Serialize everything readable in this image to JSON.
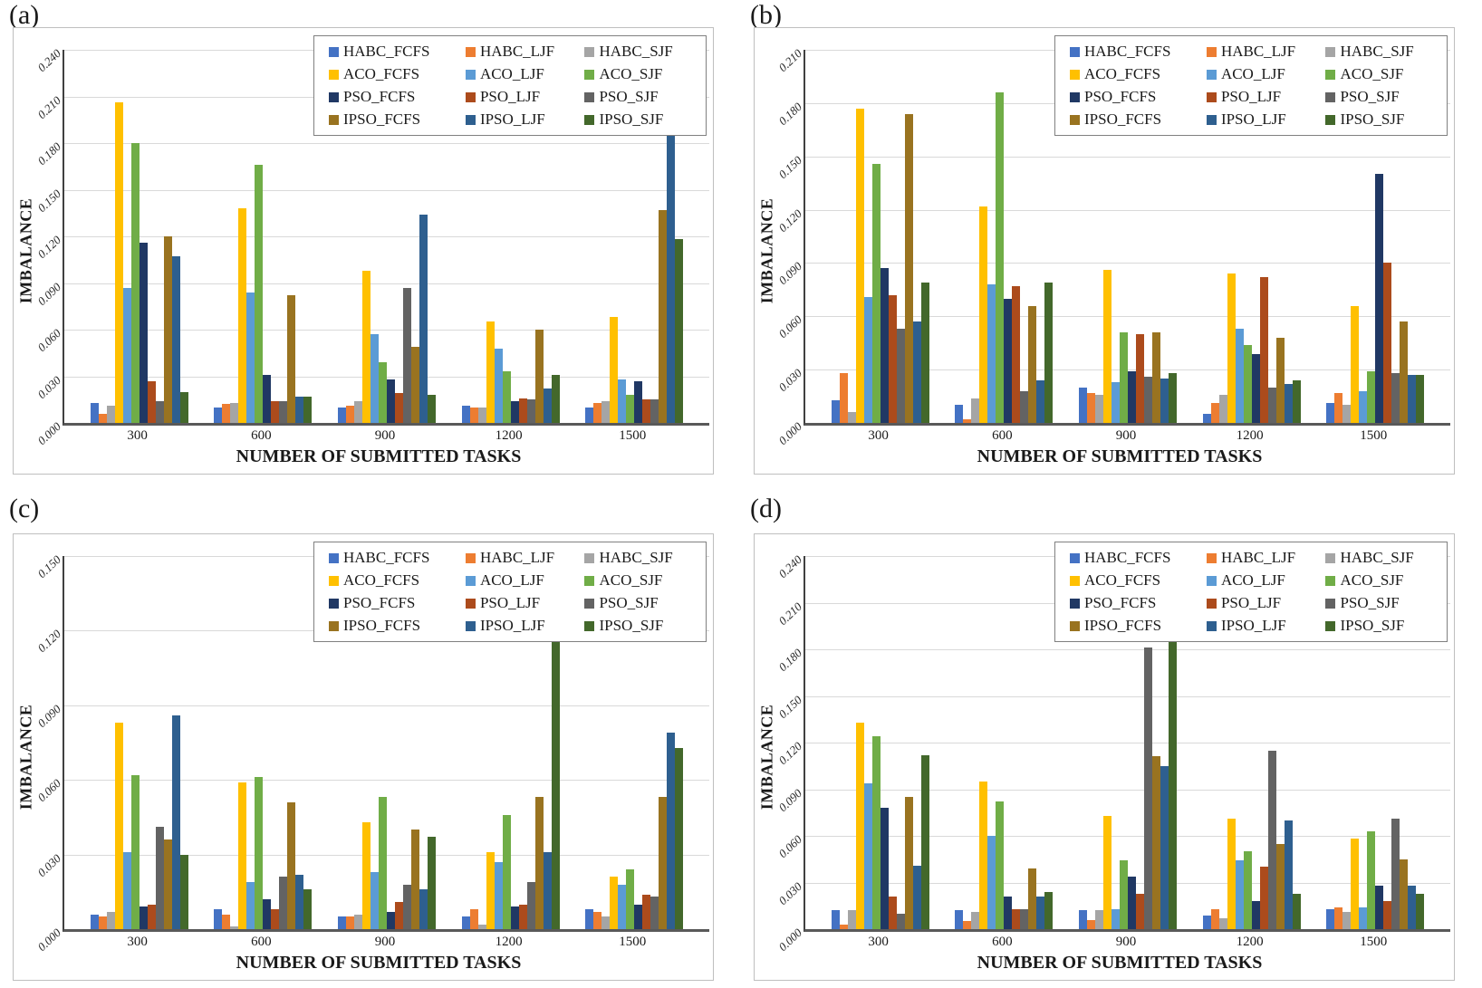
{
  "figure": {
    "series_colors": {
      "HABC_FCFS": "#4472C4",
      "HABC_LJF": "#ED7D31",
      "HABC_SJF": "#A5A5A5",
      "ACO_FCFS": "#FFC000",
      "ACO_LJF": "#5B9BD5",
      "ACO_SJF": "#70AD47",
      "PSO_FCFS": "#203864",
      "PSO_LJF": "#AC4B1C",
      "PSO_SJF": "#636363",
      "IPSO_FCFS": "#997320",
      "IPSO_LJF": "#2E5F8F",
      "IPSO_SJF": "#43682B"
    },
    "gridline_color": "#D9D9D9",
    "legend_position": "top-right"
  },
  "chart_data": [
    {
      "type": "bar",
      "panel_letter": "(a)",
      "xlabel": "NUMBER OF SUBMITTED TASKS",
      "ylabel": "IMBALANCE",
      "categories": [
        "300",
        "600",
        "900",
        "1200",
        "1500"
      ],
      "ylim": [
        0,
        0.24
      ],
      "yticks": [
        "0.000",
        "0.030",
        "0.060",
        "0.090",
        "0.120",
        "0.150",
        "0.180",
        "0.210",
        "0.240"
      ],
      "grid": true,
      "series": [
        {
          "name": "HABC_FCFS",
          "values": [
            0.013,
            0.01,
            0.01,
            0.011,
            0.01
          ]
        },
        {
          "name": "HABC_LJF",
          "values": [
            0.006,
            0.012,
            0.011,
            0.01,
            0.013
          ]
        },
        {
          "name": "HABC_SJF",
          "values": [
            0.011,
            0.013,
            0.014,
            0.01,
            0.014
          ]
        },
        {
          "name": "ACO_FCFS",
          "values": [
            0.206,
            0.138,
            0.098,
            0.065,
            0.068
          ]
        },
        {
          "name": "ACO_LJF",
          "values": [
            0.087,
            0.084,
            0.057,
            0.048,
            0.028
          ]
        },
        {
          "name": "ACO_SJF",
          "values": [
            0.18,
            0.166,
            0.039,
            0.033,
            0.018
          ]
        },
        {
          "name": "PSO_FCFS",
          "values": [
            0.116,
            0.031,
            0.028,
            0.014,
            0.027
          ]
        },
        {
          "name": "PSO_LJF",
          "values": [
            0.027,
            0.014,
            0.019,
            0.016,
            0.015
          ]
        },
        {
          "name": "PSO_SJF",
          "values": [
            0.014,
            0.014,
            0.087,
            0.015,
            0.015
          ]
        },
        {
          "name": "IPSO_FCFS",
          "values": [
            0.12,
            0.082,
            0.049,
            0.06,
            0.137
          ]
        },
        {
          "name": "IPSO_LJF",
          "values": [
            0.107,
            0.017,
            0.134,
            0.022,
            0.185
          ]
        },
        {
          "name": "IPSO_SJF",
          "values": [
            0.02,
            0.017,
            0.018,
            0.031,
            0.118
          ]
        }
      ]
    },
    {
      "type": "bar",
      "panel_letter": "(b)",
      "xlabel": "NUMBER OF SUBMITTED TASKS",
      "ylabel": "IMBALANCE",
      "categories": [
        "300",
        "600",
        "900",
        "1200",
        "1500"
      ],
      "ylim": [
        0,
        0.21
      ],
      "yticks": [
        "0.000",
        "0.030",
        "0.060",
        "0.090",
        "0.120",
        "0.150",
        "0.180",
        "0.210"
      ],
      "grid": true,
      "series": [
        {
          "name": "HABC_FCFS",
          "values": [
            0.013,
            0.01,
            0.02,
            0.005,
            0.011
          ]
        },
        {
          "name": "HABC_LJF",
          "values": [
            0.028,
            0.002,
            0.017,
            0.011,
            0.017
          ]
        },
        {
          "name": "HABC_SJF",
          "values": [
            0.006,
            0.014,
            0.016,
            0.016,
            0.01
          ]
        },
        {
          "name": "ACO_FCFS",
          "values": [
            0.177,
            0.122,
            0.086,
            0.084,
            0.066
          ]
        },
        {
          "name": "ACO_LJF",
          "values": [
            0.071,
            0.078,
            0.023,
            0.053,
            0.018
          ]
        },
        {
          "name": "ACO_SJF",
          "values": [
            0.146,
            0.186,
            0.051,
            0.044,
            0.029
          ]
        },
        {
          "name": "PSO_FCFS",
          "values": [
            0.087,
            0.07,
            0.029,
            0.039,
            0.14
          ]
        },
        {
          "name": "PSO_LJF",
          "values": [
            0.072,
            0.077,
            0.05,
            0.082,
            0.09
          ]
        },
        {
          "name": "PSO_SJF",
          "values": [
            0.053,
            0.018,
            0.026,
            0.02,
            0.028
          ]
        },
        {
          "name": "IPSO_FCFS",
          "values": [
            0.174,
            0.066,
            0.051,
            0.048,
            0.057
          ]
        },
        {
          "name": "IPSO_LJF",
          "values": [
            0.057,
            0.024,
            0.025,
            0.022,
            0.027
          ]
        },
        {
          "name": "IPSO_SJF",
          "values": [
            0.079,
            0.079,
            0.028,
            0.024,
            0.027
          ]
        }
      ]
    },
    {
      "type": "bar",
      "panel_letter": "(c)",
      "xlabel": "NUMBER OF SUBMITTED TASKS",
      "ylabel": "IMBALANCE",
      "categories": [
        "300",
        "600",
        "900",
        "1200",
        "1500"
      ],
      "ylim": [
        0,
        0.15
      ],
      "yticks": [
        "0.000",
        "0.030",
        "0.060",
        "0.090",
        "0.120",
        "0.150"
      ],
      "grid": true,
      "series": [
        {
          "name": "HABC_FCFS",
          "values": [
            0.006,
            0.008,
            0.005,
            0.005,
            0.008
          ]
        },
        {
          "name": "HABC_LJF",
          "values": [
            0.005,
            0.006,
            0.005,
            0.008,
            0.007
          ]
        },
        {
          "name": "HABC_SJF",
          "values": [
            0.007,
            0.001,
            0.006,
            0.002,
            0.005
          ]
        },
        {
          "name": "ACO_FCFS",
          "values": [
            0.083,
            0.059,
            0.043,
            0.031,
            0.021
          ]
        },
        {
          "name": "ACO_LJF",
          "values": [
            0.031,
            0.019,
            0.023,
            0.027,
            0.018
          ]
        },
        {
          "name": "ACO_SJF",
          "values": [
            0.062,
            0.061,
            0.053,
            0.046,
            0.024
          ]
        },
        {
          "name": "PSO_FCFS",
          "values": [
            0.009,
            0.012,
            0.007,
            0.009,
            0.01
          ]
        },
        {
          "name": "PSO_LJF",
          "values": [
            0.01,
            0.008,
            0.011,
            0.01,
            0.014
          ]
        },
        {
          "name": "PSO_SJF",
          "values": [
            0.041,
            0.021,
            0.018,
            0.019,
            0.013
          ]
        },
        {
          "name": "IPSO_FCFS",
          "values": [
            0.036,
            0.051,
            0.04,
            0.053,
            0.053
          ]
        },
        {
          "name": "IPSO_LJF",
          "values": [
            0.086,
            0.022,
            0.016,
            0.031,
            0.079
          ]
        },
        {
          "name": "IPSO_SJF",
          "values": [
            0.03,
            0.016,
            0.037,
            0.119,
            0.073
          ]
        }
      ]
    },
    {
      "type": "bar",
      "panel_letter": "(d)",
      "xlabel": "NUMBER OF SUBMITTED TASKS",
      "ylabel": "IMBALANCE",
      "categories": [
        "300",
        "600",
        "900",
        "1200",
        "1500"
      ],
      "ylim": [
        0,
        0.24
      ],
      "yticks": [
        "0.000",
        "0.030",
        "0.060",
        "0.090",
        "0.120",
        "0.150",
        "0.180",
        "0.210",
        "0.240"
      ],
      "grid": true,
      "series": [
        {
          "name": "HABC_FCFS",
          "values": [
            0.012,
            0.012,
            0.012,
            0.009,
            0.013
          ]
        },
        {
          "name": "HABC_LJF",
          "values": [
            0.003,
            0.005,
            0.006,
            0.013,
            0.014
          ]
        },
        {
          "name": "HABC_SJF",
          "values": [
            0.012,
            0.011,
            0.012,
            0.007,
            0.011
          ]
        },
        {
          "name": "ACO_FCFS",
          "values": [
            0.133,
            0.095,
            0.073,
            0.071,
            0.058
          ]
        },
        {
          "name": "ACO_LJF",
          "values": [
            0.094,
            0.06,
            0.013,
            0.044,
            0.014
          ]
        },
        {
          "name": "ACO_SJF",
          "values": [
            0.124,
            0.082,
            0.044,
            0.05,
            0.063
          ]
        },
        {
          "name": "PSO_FCFS",
          "values": [
            0.078,
            0.021,
            0.034,
            0.018,
            0.028
          ]
        },
        {
          "name": "PSO_LJF",
          "values": [
            0.021,
            0.013,
            0.023,
            0.04,
            0.018
          ]
        },
        {
          "name": "PSO_SJF",
          "values": [
            0.01,
            0.013,
            0.181,
            0.115,
            0.071
          ]
        },
        {
          "name": "IPSO_FCFS",
          "values": [
            0.085,
            0.039,
            0.111,
            0.055,
            0.045
          ]
        },
        {
          "name": "IPSO_LJF",
          "values": [
            0.041,
            0.021,
            0.105,
            0.07,
            0.028
          ]
        },
        {
          "name": "IPSO_SJF",
          "values": [
            0.112,
            0.024,
            0.194,
            0.023,
            0.023
          ]
        }
      ]
    }
  ]
}
